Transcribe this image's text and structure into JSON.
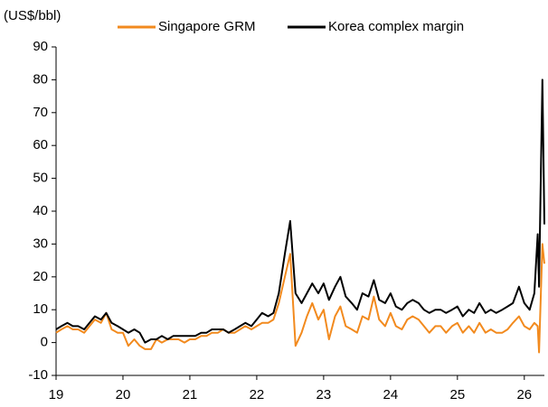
{
  "chart_data": {
    "type": "line",
    "y_label": "(US$/bbl)",
    "x": [
      19,
      19.08,
      19.17,
      19.25,
      19.33,
      19.42,
      19.5,
      19.58,
      19.67,
      19.75,
      19.83,
      19.92,
      20,
      20.08,
      20.17,
      20.25,
      20.33,
      20.42,
      20.5,
      20.58,
      20.67,
      20.75,
      20.83,
      20.92,
      21,
      21.08,
      21.17,
      21.25,
      21.33,
      21.42,
      21.5,
      21.58,
      21.67,
      21.75,
      21.83,
      21.92,
      22,
      22.08,
      22.17,
      22.25,
      22.33,
      22.42,
      22.5,
      22.58,
      22.67,
      22.75,
      22.83,
      22.92,
      23,
      23.08,
      23.17,
      23.25,
      23.33,
      23.42,
      23.5,
      23.58,
      23.67,
      23.75,
      23.83,
      23.92,
      24,
      24.08,
      24.17,
      24.25,
      24.33,
      24.42,
      24.5,
      24.58,
      24.67,
      24.75,
      24.83,
      24.92,
      25,
      25.08,
      25.17,
      25.25,
      25.33,
      25.42,
      25.5,
      25.58,
      25.67,
      25.75,
      25.83,
      25.92,
      26,
      26.08,
      26.15,
      26.2,
      26.22,
      26.27,
      26.3
    ],
    "series": [
      {
        "name": "Singapore GRM",
        "color": "#f28a1e",
        "values": [
          3,
          4,
          5,
          4,
          4,
          3,
          5,
          7,
          6,
          9,
          4,
          3,
          3,
          -1,
          1,
          -1,
          -2,
          -2,
          1,
          0,
          1,
          1,
          1,
          0,
          1,
          1,
          2,
          2,
          3,
          3,
          4,
          3,
          3,
          4,
          5,
          4,
          5,
          6,
          6,
          7,
          12,
          20,
          27,
          -1,
          3,
          8,
          12,
          7,
          10,
          1,
          8,
          11,
          5,
          4,
          3,
          8,
          7,
          14,
          7,
          5,
          9,
          5,
          4,
          7,
          8,
          7,
          5,
          3,
          5,
          5,
          3,
          5,
          6,
          3,
          5,
          3,
          6,
          3,
          4,
          3,
          3,
          4,
          6,
          8,
          5,
          4,
          6,
          5,
          -3,
          30,
          24
        ]
      },
      {
        "name": "Korea complex margin",
        "color": "#000000",
        "values": [
          4,
          5,
          6,
          5,
          5,
          4,
          6,
          8,
          7,
          9,
          6,
          5,
          4,
          3,
          4,
          3,
          0,
          1,
          1,
          2,
          1,
          2,
          2,
          2,
          2,
          2,
          3,
          3,
          4,
          4,
          4,
          3,
          4,
          5,
          6,
          5,
          7,
          9,
          8,
          9,
          15,
          27,
          37,
          15,
          12,
          15,
          18,
          15,
          18,
          13,
          17,
          20,
          14,
          12,
          10,
          15,
          14,
          19,
          13,
          12,
          15,
          11,
          10,
          12,
          13,
          12,
          10,
          9,
          10,
          10,
          9,
          10,
          11,
          8,
          10,
          9,
          12,
          9,
          10,
          9,
          10,
          11,
          12,
          17,
          12,
          10,
          15,
          33,
          17,
          80,
          36
        ]
      }
    ],
    "xlim": [
      19,
      26.3
    ],
    "xticks": [
      19,
      20,
      21,
      22,
      23,
      24,
      25,
      26
    ],
    "ylim": [
      -10,
      90
    ],
    "yticks": [
      -10,
      0,
      10,
      20,
      30,
      40,
      50,
      60,
      70,
      80,
      90
    ]
  }
}
